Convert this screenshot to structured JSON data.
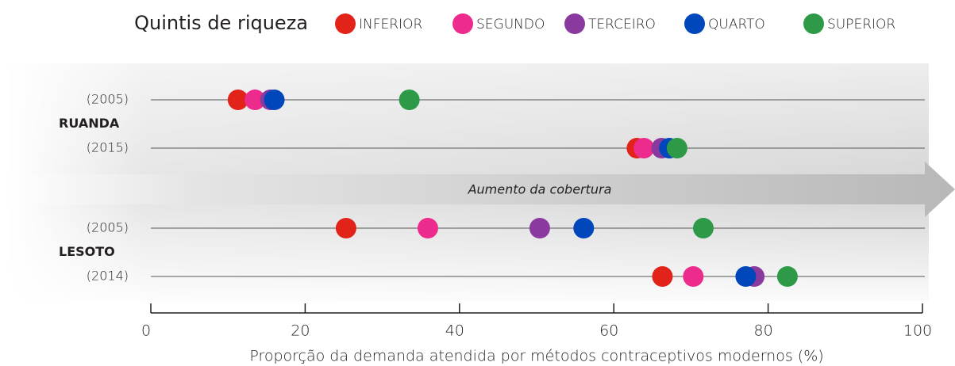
{
  "chart_data": {
    "type": "dot",
    "legend_title": "Quintis de riqueza",
    "annotation": "Aumento da cobertura",
    "x_label": "Proporção da demanda atendida por métodos contraceptivos modernos (%)",
    "groups": [
      "RUANDA",
      "LESOTO"
    ],
    "categories": [
      "(2005)",
      "(2015)",
      "(2005)",
      "(2014)"
    ],
    "series": [
      {
        "name": "INFERIOR",
        "color": "#e2231a",
        "values": [
          11.3,
          63.0,
          25.3,
          66.3
        ]
      },
      {
        "name": "SEGUNDO",
        "color": "#ec2b8c",
        "values": [
          13.5,
          63.9,
          35.9,
          70.3
        ]
      },
      {
        "name": "TERCEIRO",
        "color": "#8a3a9e",
        "values": [
          15.5,
          66.2,
          50.4,
          78.2
        ]
      },
      {
        "name": "QUARTO",
        "color": "#0047bb",
        "values": [
          16.0,
          67.2,
          56.1,
          77.1
        ]
      },
      {
        "name": "SUPERIOR",
        "color": "#2e9a48",
        "values": [
          33.5,
          68.2,
          71.6,
          82.5
        ]
      }
    ],
    "xlim": [
      0,
      100
    ],
    "xticks": [
      0,
      20,
      40,
      60,
      80,
      100
    ]
  }
}
